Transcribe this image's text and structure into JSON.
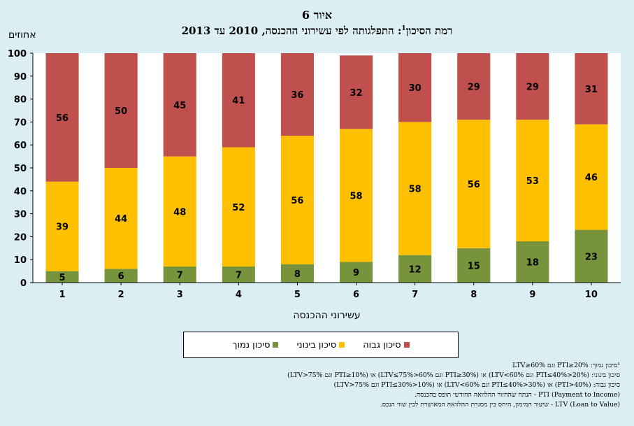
{
  "figure": {
    "title_line1": "איור 6",
    "title_line2": "רמת הסיכון",
    "title_sup": "1",
    "title_line2_rest": ": התפלגותה לפי עשירוני ההכנסה, 2010 עד 2013"
  },
  "chart_data": {
    "type": "bar",
    "stacked": true,
    "categories": [
      "1",
      "2",
      "3",
      "4",
      "5",
      "6",
      "7",
      "8",
      "9",
      "10"
    ],
    "ylabel": "אחוזים",
    "xlabel": "עשירוני ההכנסה",
    "ylim": [
      0,
      100
    ],
    "yticks": [
      0,
      10,
      20,
      30,
      40,
      50,
      60,
      70,
      80,
      90,
      100
    ],
    "grid": false,
    "legend_position": "bottom",
    "series": [
      {
        "name": "סיכון נמוך",
        "color": "#77933c",
        "values": [
          5,
          6,
          7,
          7,
          8,
          9,
          12,
          15,
          18,
          23
        ]
      },
      {
        "name": "סיכון בינוני",
        "color": "#ffc000",
        "values": [
          39,
          44,
          48,
          52,
          56,
          58,
          58,
          56,
          53,
          46
        ]
      },
      {
        "name": "סיכון גבוה",
        "color": "#c0504d",
        "values": [
          56,
          50,
          45,
          41,
          36,
          32,
          30,
          29,
          29,
          31
        ]
      }
    ]
  },
  "notes": {
    "line1": "¹סיכון נמוך: PTI≥20% וגם LTV≥60%",
    "line2": "סיכון בינוני: (20%<PTI≤40% וגם LTV<60%) או (30%≤PTI וגם 60%<LTV≤75%) או (PTI≥10% וגם LTV>75%)",
    "line3": "סיכון גבוה: (PTI>40%) או (30%<PTI≤40% וגם LTV<60%) או (10%<PTI≤30% וגם LTV>75%)",
    "line4": "PTI (Payment to Income) - הנתח שהחזור ההלוואה החודשי תופס בהכנסה.",
    "line5": "LTV (Loan to Value) - שיעור המימון, היחס בין מסגרת ההלוואה המאושרת לבין שווי הנכס."
  }
}
